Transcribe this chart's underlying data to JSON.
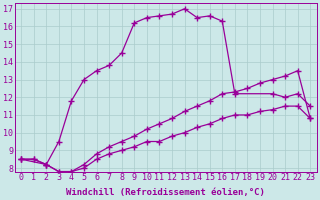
{
  "xlabel": "Windchill (Refroidissement éolien,°C)",
  "background_color": "#cce8e8",
  "grid_color": "#aacccc",
  "line_color": "#990099",
  "xlim": [
    -0.5,
    23.5
  ],
  "ylim": [
    7.8,
    17.3
  ],
  "xticks": [
    0,
    1,
    2,
    3,
    4,
    5,
    6,
    7,
    8,
    9,
    10,
    11,
    12,
    13,
    14,
    15,
    16,
    17,
    18,
    19,
    20,
    21,
    22,
    23
  ],
  "yticks": [
    8,
    9,
    10,
    11,
    12,
    13,
    14,
    15,
    16,
    17
  ],
  "series": [
    {
      "x": [
        0,
        1,
        2,
        3,
        4,
        5,
        6,
        7,
        8,
        9,
        10,
        11,
        12,
        13,
        14,
        15,
        16,
        17,
        18,
        19,
        20,
        21,
        22,
        23
      ],
      "y": [
        8.5,
        8.5,
        8.2,
        7.8,
        7.8,
        8.0,
        8.5,
        8.8,
        9.0,
        9.2,
        9.5,
        9.5,
        9.8,
        10.0,
        10.3,
        10.5,
        10.8,
        11.0,
        11.0,
        11.2,
        11.3,
        11.5,
        11.5,
        10.8
      ]
    },
    {
      "x": [
        0,
        1,
        2,
        3,
        4,
        5,
        6,
        7,
        8,
        9,
        10,
        11,
        12,
        13,
        14,
        15,
        16,
        17,
        18,
        19,
        20,
        21,
        22,
        23
      ],
      "y": [
        8.5,
        8.5,
        8.2,
        7.8,
        7.8,
        8.2,
        8.8,
        9.2,
        9.5,
        9.8,
        10.2,
        10.5,
        10.8,
        11.2,
        11.5,
        11.8,
        12.2,
        12.3,
        12.5,
        12.8,
        13.0,
        13.2,
        13.5,
        10.8
      ]
    },
    {
      "x": [
        0,
        2,
        3,
        4,
        5,
        6,
        7,
        8,
        9,
        10,
        11,
        12,
        13,
        14,
        15,
        16,
        17,
        20,
        21,
        22,
        23
      ],
      "y": [
        8.5,
        8.2,
        9.5,
        11.8,
        13.0,
        13.5,
        13.8,
        14.5,
        16.2,
        16.5,
        16.6,
        16.7,
        17.0,
        16.5,
        16.6,
        16.3,
        12.2,
        12.2,
        12.0,
        12.2,
        11.5
      ]
    }
  ],
  "marker": "+",
  "markersize": 4,
  "linewidth": 0.9,
  "fontsize_xlabel": 6.5,
  "fontsize_ticks": 6
}
